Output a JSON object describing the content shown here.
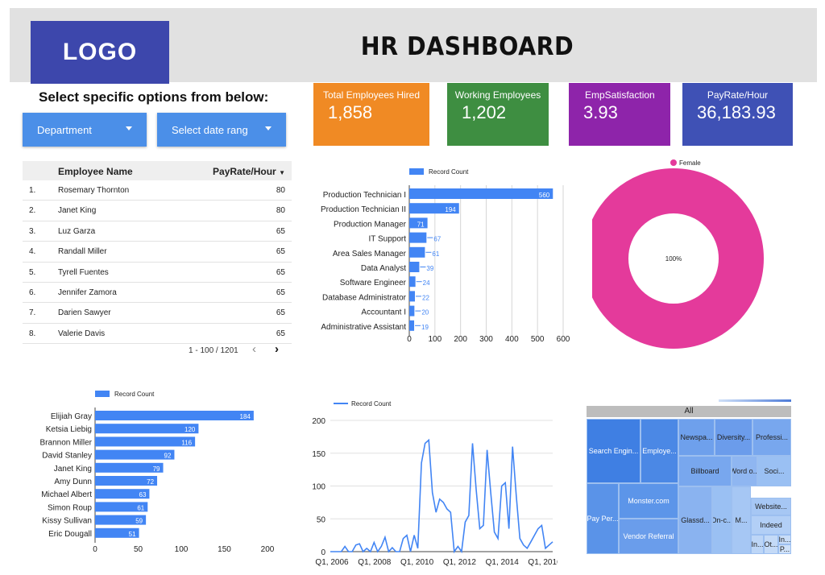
{
  "header": {
    "logo": "LOGO",
    "title": "HR DASHBOARD"
  },
  "filters": {
    "prompt": "Select specific options from below:",
    "department_label": "Department",
    "date_label": "Select date rang"
  },
  "kpis": [
    {
      "label": "Total Employees Hired",
      "value": "1,858",
      "color": "#f08a24"
    },
    {
      "label": "Working Employees",
      "value": "1,202",
      "color": "#3e8e41"
    },
    {
      "label": "EmpSatisfaction",
      "value": "3.93",
      "color": "#8e24aa"
    },
    {
      "label": "PayRate/Hour",
      "value": "36,183.93",
      "color": "#3f51b5"
    }
  ],
  "table": {
    "headers": [
      "Employee Name",
      "PayRate/Hour"
    ],
    "sort_icon": "sort-down-icon",
    "rows": [
      [
        "1.",
        "Rosemary Thornton",
        "80"
      ],
      [
        "2.",
        "Janet King",
        "80"
      ],
      [
        "3.",
        "Luz Garza",
        "65"
      ],
      [
        "4.",
        "Randall Miller",
        "65"
      ],
      [
        "5.",
        "Tyrell Fuentes",
        "65"
      ],
      [
        "6.",
        "Jennifer Zamora",
        "65"
      ],
      [
        "7.",
        "Darien Sawyer",
        "65"
      ],
      [
        "8.",
        "Valerie Davis",
        "65"
      ]
    ],
    "pagination": "1 - 100 / 1201",
    "prev_icon": "chevron-left-icon",
    "next_icon": "chevron-right-icon"
  },
  "chart_data": [
    {
      "type": "bar",
      "orientation": "horizontal",
      "legend": "Record Count",
      "legend_position": "top",
      "categories": [
        "Production Technician I",
        "Production Technician II",
        "Production Manager",
        "IT Support",
        "Area Sales Manager",
        "Data Analyst",
        "Software Engineer",
        "Database Administrator",
        "Accountant I",
        "Administrative Assistant"
      ],
      "series": [
        {
          "name": "Record Count",
          "values": [
            560,
            194,
            71,
            67,
            61,
            39,
            24,
            22,
            20,
            19
          ]
        }
      ],
      "xticks": [
        "0",
        "100",
        "200",
        "300",
        "400",
        "500",
        "600"
      ],
      "xlim": [
        0,
        600
      ],
      "grid": true,
      "color": "#4285f4"
    },
    {
      "type": "pie",
      "donut": true,
      "legend": "Female",
      "legend_position": "top",
      "slices": [
        {
          "name": "Female",
          "value": 100,
          "label": "100%"
        }
      ],
      "color": "#e43a9b"
    },
    {
      "type": "bar",
      "orientation": "horizontal",
      "legend": "Record Count",
      "legend_position": "top",
      "categories": [
        "Elijiah Gray",
        "Ketsia Liebig",
        "Brannon Miller",
        "David Stanley",
        "Janet King",
        "Amy Dunn",
        "Michael Albert",
        "Simon Roup",
        "Kissy Sullivan",
        "Eric Dougall"
      ],
      "series": [
        {
          "name": "Record Count",
          "values": [
            184,
            120,
            116,
            92,
            79,
            72,
            63,
            61,
            59,
            51
          ]
        }
      ],
      "xticks": [
        "0",
        "50",
        "100",
        "150",
        "200"
      ],
      "xlim": [
        0,
        200
      ],
      "grid": false,
      "color": "#4285f4"
    },
    {
      "type": "line",
      "legend": "Record Count",
      "legend_position": "top",
      "x_ticks": [
        "Q1, 2006",
        "Q1, 2008",
        "Q1, 2010",
        "Q1, 2012",
        "Q1, 2014",
        "Q1, 2016"
      ],
      "yticks": [
        "0",
        "50",
        "100",
        "150",
        "200"
      ],
      "ylim": [
        0,
        200
      ],
      "series": [
        {
          "name": "Record Count",
          "values": [
            0,
            0,
            0,
            0,
            8,
            0,
            0,
            10,
            12,
            0,
            5,
            0,
            14,
            0,
            8,
            22,
            0,
            6,
            0,
            0,
            20,
            25,
            0,
            25,
            5,
            135,
            165,
            170,
            90,
            60,
            80,
            75,
            65,
            60,
            0,
            8,
            0,
            45,
            55,
            165,
            95,
            35,
            40,
            155,
            90,
            30,
            20,
            100,
            105,
            35,
            160,
            85,
            20,
            10,
            5,
            15,
            25,
            35,
            40,
            5,
            10,
            15
          ]
        }
      ],
      "color": "#4285f4"
    },
    {
      "type": "treemap",
      "root": "All",
      "cells": [
        {
          "label": "Search Engin..."
        },
        {
          "label": "Employe..."
        },
        {
          "label": "Newspa..."
        },
        {
          "label": "Diversity..."
        },
        {
          "label": "Professi..."
        },
        {
          "label": "Billboard"
        },
        {
          "label": "Word o..."
        },
        {
          "label": "Soci..."
        },
        {
          "label": "Monster.com"
        },
        {
          "label": "Pay Per..."
        },
        {
          "label": "Website..."
        },
        {
          "label": "Glassd..."
        },
        {
          "label": "On-c..."
        },
        {
          "label": "M..."
        },
        {
          "label": "Indeed"
        },
        {
          "label": "In..."
        },
        {
          "label": "Ot..."
        },
        {
          "label": "In..."
        },
        {
          "label": "P..."
        },
        {
          "label": "Vendor Referral"
        }
      ]
    }
  ]
}
